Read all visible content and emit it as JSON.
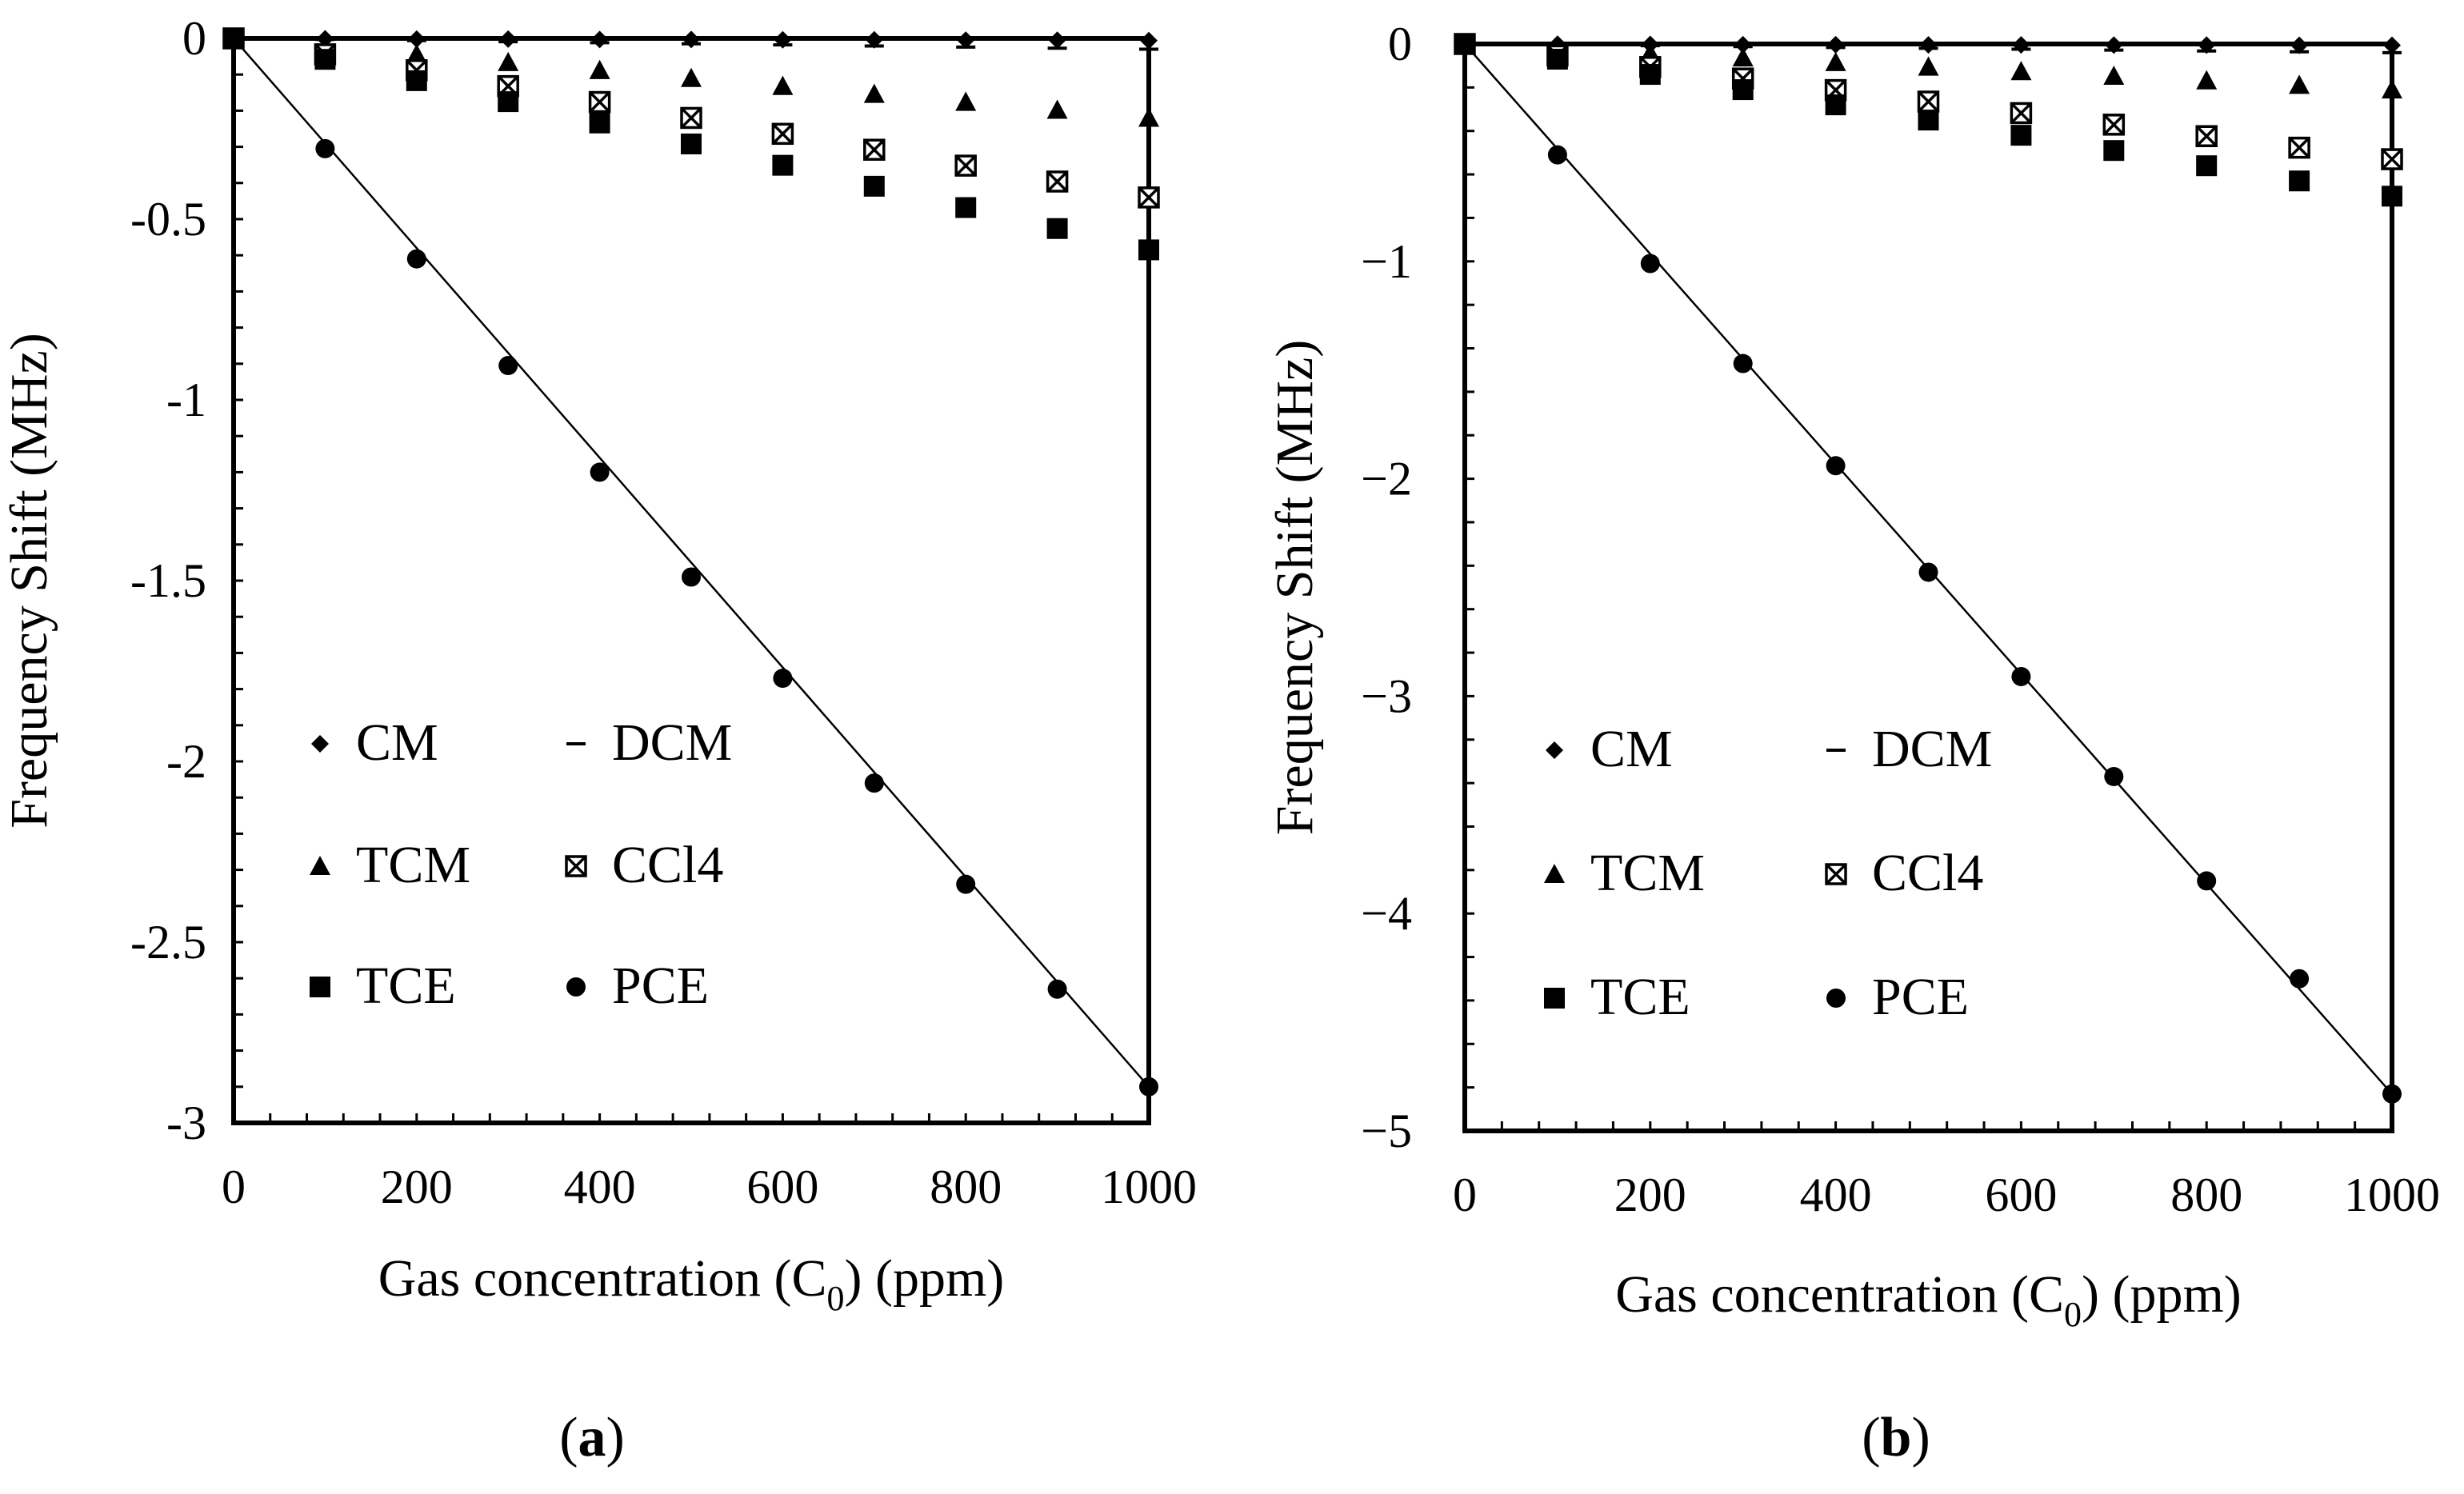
{
  "chart_data": [
    {
      "type": "scatter",
      "panel_label": "a",
      "xlabel": "Gas concentration (C0) (ppm)",
      "xlabel_parts": {
        "pre": "Gas concentration (C",
        "sub": "0",
        "post": ") (ppm)"
      },
      "ylabel": "Frequency Shift (MHz)",
      "xlim": [
        0,
        1000
      ],
      "ylim": [
        -3,
        0
      ],
      "xticks": [
        0,
        200,
        400,
        600,
        800,
        1000
      ],
      "yticks": [
        0,
        -0.5,
        -1,
        -1.5,
        -2,
        -2.5,
        -3
      ],
      "ytick_labels": [
        "0",
        "-0.5",
        "-1",
        "-1.5",
        "-2",
        "-2.5",
        "-3"
      ],
      "x": [
        0,
        100,
        200,
        300,
        400,
        500,
        600,
        700,
        800,
        900,
        1000
      ],
      "series": [
        {
          "name": "CM",
          "marker": "diamond",
          "values": [
            0,
            -0.001,
            -0.002,
            -0.002,
            -0.003,
            -0.003,
            -0.004,
            -0.004,
            -0.005,
            -0.005,
            -0.006
          ]
        },
        {
          "name": "DCM",
          "marker": "dash",
          "values": [
            0,
            -0.003,
            -0.006,
            -0.009,
            -0.012,
            -0.015,
            -0.018,
            -0.021,
            -0.024,
            -0.027,
            -0.03
          ]
        },
        {
          "name": "TCM",
          "marker": "triangle",
          "values": [
            0,
            -0.022,
            -0.044,
            -0.066,
            -0.088,
            -0.11,
            -0.132,
            -0.154,
            -0.176,
            -0.198,
            -0.22
          ]
        },
        {
          "name": "CCl4",
          "marker": "xsquare",
          "values": [
            0,
            -0.044,
            -0.088,
            -0.132,
            -0.176,
            -0.22,
            -0.264,
            -0.308,
            -0.352,
            -0.396,
            -0.44
          ]
        },
        {
          "name": "TCE",
          "marker": "square",
          "values": [
            0,
            -0.058,
            -0.117,
            -0.175,
            -0.234,
            -0.292,
            -0.351,
            -0.409,
            -0.468,
            -0.526,
            -0.585
          ]
        },
        {
          "name": "PCE",
          "marker": "circle",
          "values": [
            0,
            -0.305,
            -0.61,
            -0.905,
            -1.2,
            -1.49,
            -1.77,
            -2.06,
            -2.34,
            -2.63,
            -2.9
          ]
        }
      ],
      "fit_line": {
        "series": "PCE",
        "x": [
          0,
          1000
        ],
        "y": [
          0,
          -2.9
        ]
      },
      "legend_placement": "lower-left"
    },
    {
      "type": "scatter",
      "panel_label": "b",
      "xlabel": "Gas concentration (C0) (ppm)",
      "xlabel_parts": {
        "pre": "Gas concentration (C",
        "sub": "0",
        "post": ") (ppm)"
      },
      "ylabel": "Frequency Shift (MHz)",
      "xlim": [
        0,
        1000
      ],
      "ylim": [
        -5,
        0
      ],
      "xticks": [
        0,
        200,
        400,
        600,
        800,
        1000
      ],
      "yticks": [
        0,
        -1,
        -2,
        -3,
        -4,
        -5
      ],
      "ytick_labels": [
        "0",
        "−1",
        "−2",
        "−3",
        "−4",
        "−5"
      ],
      "x": [
        0,
        100,
        200,
        300,
        400,
        500,
        600,
        700,
        800,
        900,
        1000
      ],
      "series": [
        {
          "name": "CM",
          "marker": "diamond",
          "values": [
            0,
            -0.001,
            -0.002,
            -0.003,
            -0.003,
            -0.004,
            -0.004,
            -0.005,
            -0.005,
            -0.006,
            -0.006
          ]
        },
        {
          "name": "DCM",
          "marker": "dash",
          "values": [
            0,
            -0.004,
            -0.008,
            -0.012,
            -0.016,
            -0.02,
            -0.024,
            -0.028,
            -0.032,
            -0.036,
            -0.04
          ]
        },
        {
          "name": "TCM",
          "marker": "triangle",
          "values": [
            0,
            -0.021,
            -0.042,
            -0.063,
            -0.084,
            -0.105,
            -0.126,
            -0.147,
            -0.168,
            -0.189,
            -0.21
          ]
        },
        {
          "name": "CCl4",
          "marker": "xsquare",
          "values": [
            0,
            -0.053,
            -0.106,
            -0.159,
            -0.212,
            -0.265,
            -0.318,
            -0.371,
            -0.424,
            -0.477,
            -0.53
          ]
        },
        {
          "name": "TCE",
          "marker": "square",
          "values": [
            0,
            -0.07,
            -0.14,
            -0.21,
            -0.28,
            -0.35,
            -0.42,
            -0.49,
            -0.56,
            -0.63,
            -0.7
          ]
        },
        {
          "name": "PCE",
          "marker": "circle",
          "values": [
            0,
            -0.51,
            -1.01,
            -1.47,
            -1.94,
            -2.43,
            -2.91,
            -3.37,
            -3.85,
            -4.3,
            -4.83
          ]
        }
      ],
      "fit_line": {
        "series": "PCE",
        "x": [
          0,
          1000
        ],
        "y": [
          0,
          -4.83
        ]
      },
      "legend_placement": "lower-left"
    }
  ]
}
